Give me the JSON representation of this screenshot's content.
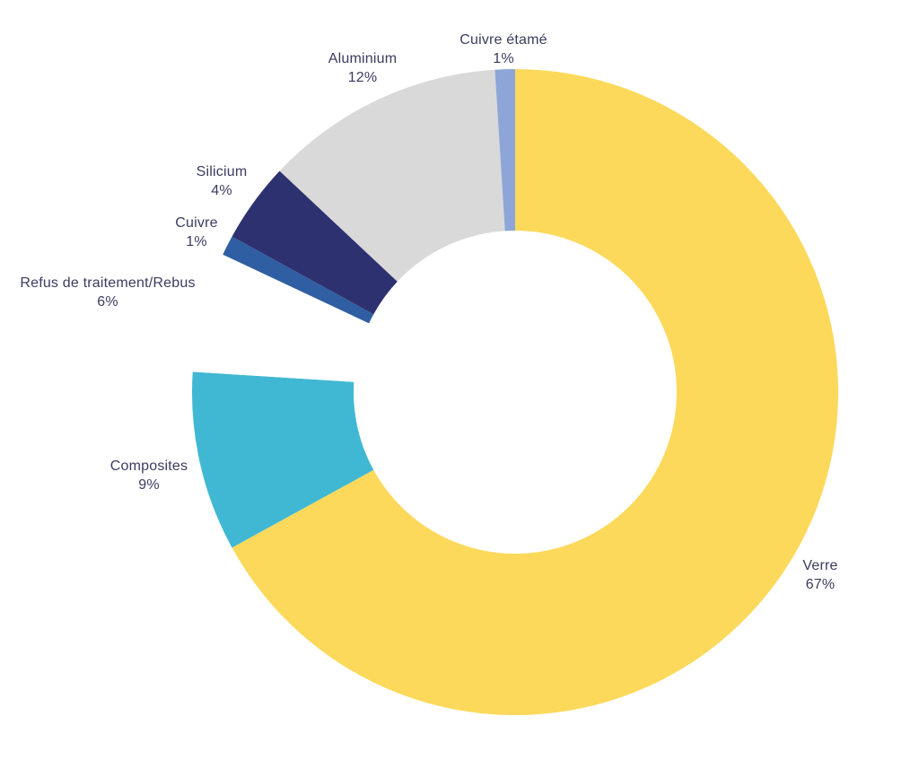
{
  "chart_data": {
    "type": "pie",
    "variant": "donut",
    "title": "",
    "legend_position": "none",
    "labels_outside": true,
    "start_angle_deg": 0,
    "direction": "clockwise",
    "inner_radius_ratio": 0.5,
    "background_color": "#FFFFFF",
    "label_text_color": "#3B3B60",
    "slices": [
      {
        "label": "Verre",
        "value": 67,
        "display": "67%",
        "color": "#FCD95B"
      },
      {
        "label": "Composites",
        "value": 9,
        "display": "9%",
        "color": "#41B8D3"
      },
      {
        "label": "Refus de traitement/Rebus",
        "value": 6,
        "display": "6%",
        "color": "#FFFFFF"
      },
      {
        "label": "Cuivre",
        "value": 1,
        "display": "1%",
        "color": "#2F5FA2"
      },
      {
        "label": "Silicium",
        "value": 4,
        "display": "4%",
        "color": "#2D3170"
      },
      {
        "label": "Aluminium",
        "value": 12,
        "display": "12%",
        "color": "#D9D9D9"
      },
      {
        "label": "Cuivre étamé",
        "value": 1,
        "display": "1%",
        "color": "#8EA6D7"
      }
    ]
  }
}
